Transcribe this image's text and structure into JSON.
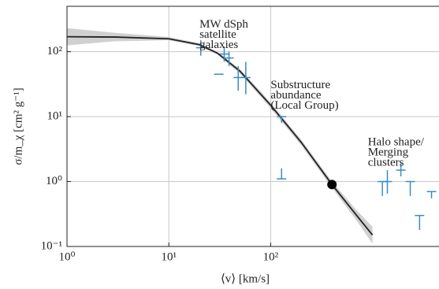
{
  "chart_data": {
    "type": "line",
    "xlabel": "⟨v⟩ [km/s]",
    "ylabel": "σ/m_χ [cm² g⁻¹]",
    "log_x": true,
    "log_y": true,
    "grid": true,
    "xlim": [
      1,
      4500
    ],
    "ylim": [
      0.1,
      500
    ],
    "xticks": [
      {
        "value": 1,
        "label": "10⁰"
      },
      {
        "value": 10,
        "label": "10¹"
      },
      {
        "value": 100,
        "label": "10²"
      }
    ],
    "yticks": [
      {
        "value": 0.1,
        "label": "10⁻¹"
      },
      {
        "value": 1,
        "label": "10⁰"
      },
      {
        "value": 10,
        "label": "10¹"
      },
      {
        "value": 100,
        "label": "10²"
      }
    ],
    "curve": {
      "color": "#222222",
      "band_color": "#c4c4c4",
      "x": [
        1,
        3,
        10,
        20,
        30,
        50,
        100,
        200,
        400,
        700,
        1000
      ],
      "y": [
        170,
        168,
        158,
        128,
        95,
        50,
        15,
        4,
        0.9,
        0.3,
        0.15
      ],
      "band_low": [
        125,
        145,
        150,
        122,
        90,
        46,
        13.5,
        3.6,
        0.8,
        0.25,
        0.11
      ],
      "band_high": [
        230,
        195,
        168,
        135,
        100,
        54,
        16.5,
        4.4,
        1.0,
        0.36,
        0.2
      ]
    },
    "marker": {
      "x": 400,
      "y": 0.9,
      "color": "#000000"
    },
    "points": {
      "color": "#3a8cc4",
      "x": [
        20.6,
        31,
        35,
        39,
        48,
        57,
        128,
        128,
        1250,
        1400,
        1900,
        2350,
        2900,
        3800
      ],
      "y": [
        115,
        45,
        92,
        80,
        40,
        40,
        10,
        1.1,
        1.0,
        1.0,
        1.5,
        1.0,
        0.3,
        0.7
      ],
      "err_low": [
        87,
        45,
        70,
        60,
        25,
        22,
        8,
        1.1,
        0.6,
        0.65,
        1.2,
        0.6,
        0.18,
        0.55
      ],
      "err_high": [
        150,
        45,
        120,
        100,
        60,
        70,
        10,
        1.6,
        1.0,
        1.5,
        1.9,
        1.0,
        0.3,
        0.7
      ]
    },
    "annotations": [
      {
        "lines": [
          "MW dSph",
          "satellite",
          "galaxies"
        ],
        "x": 20,
        "y": 260
      },
      {
        "lines": [
          "Substructure",
          "abundance",
          "(Local Group)"
        ],
        "x": 100,
        "y": 30
      },
      {
        "lines": [
          "Halo shape/",
          "Merging",
          "clusters"
        ],
        "x": 900,
        "y": 4
      }
    ]
  }
}
